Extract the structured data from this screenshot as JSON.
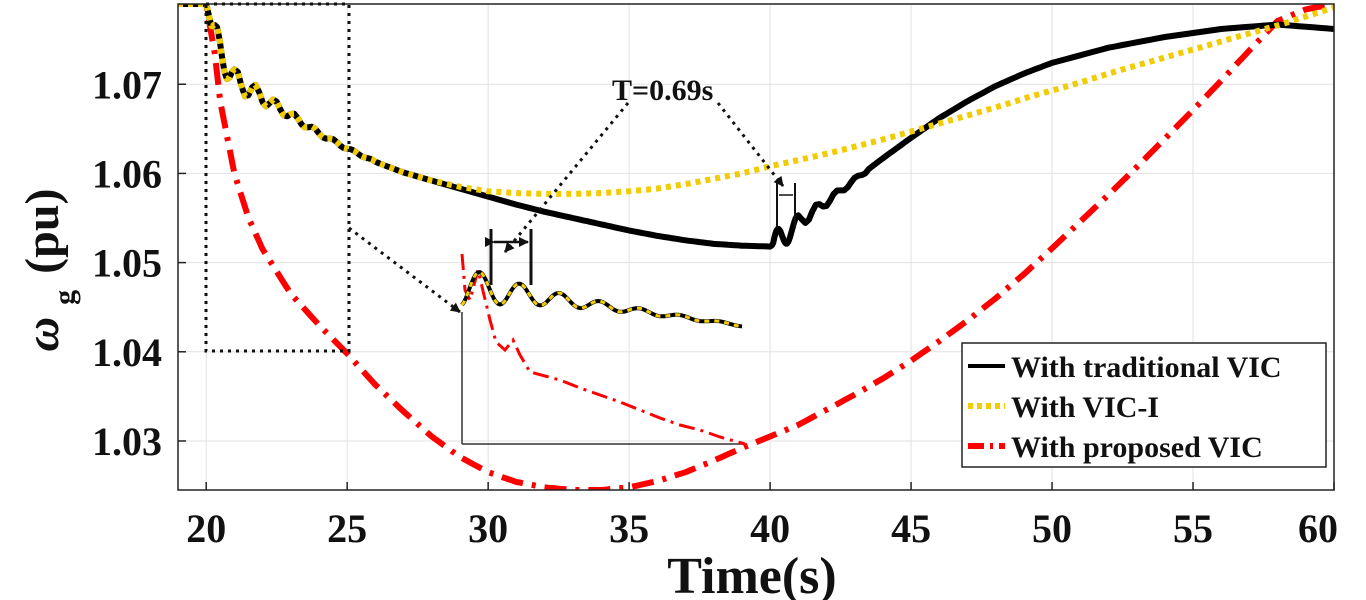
{
  "chart_data": {
    "type": "line",
    "xlabel": "Time(s)",
    "ylabel_symbol": "ω",
    "ylabel_subscript": "g",
    "ylabel_unit": "(pu)",
    "xlim": [
      19,
      60
    ],
    "ylim": [
      1.0245,
      1.079
    ],
    "xticks": [
      20,
      25,
      30,
      35,
      40,
      45,
      50,
      55,
      60
    ],
    "xtick_labels": [
      "20",
      "25",
      "30",
      "35",
      "40",
      "45",
      "50",
      "55",
      "60"
    ],
    "yticks": [
      1.03,
      1.04,
      1.05,
      1.06,
      1.07
    ],
    "ytick_labels": [
      "1.03",
      "1.04",
      "1.05",
      "1.06",
      "1.07"
    ],
    "grid": true,
    "legend_position": "bottom-right",
    "annotation": "T=0.69s",
    "zoom_box": {
      "x": [
        20,
        25
      ],
      "y": [
        1.04,
        1.079
      ]
    },
    "series": [
      {
        "name": "With traditional VIC",
        "color": "#000000",
        "style": "solid",
        "x": [
          19,
          20,
          20.3,
          21,
          22,
          23,
          24,
          25,
          26,
          27,
          28,
          29,
          30,
          31,
          32,
          33,
          34,
          35,
          36,
          37,
          38,
          39,
          40,
          40.3,
          40.6,
          41,
          42,
          43,
          44,
          45,
          46,
          47,
          48,
          49,
          50,
          52,
          54,
          56,
          58,
          60
        ],
        "y": [
          1.079,
          1.079,
          1.075,
          1.0705,
          1.0685,
          1.0665,
          1.0645,
          1.0628,
          1.0613,
          1.0601,
          1.0592,
          1.0583,
          1.0574,
          1.0565,
          1.0557,
          1.055,
          1.0543,
          1.0536,
          1.053,
          1.0525,
          1.0521,
          1.0519,
          1.0518,
          1.0525,
          1.0532,
          1.0545,
          1.0568,
          1.0593,
          1.0617,
          1.064,
          1.0662,
          1.0681,
          1.0698,
          1.0712,
          1.0724,
          1.0741,
          1.0753,
          1.0762,
          1.0767,
          1.0762
        ]
      },
      {
        "name": "With VIC-I",
        "color": "#f0cc00",
        "style": "dotted",
        "x": [
          19,
          20,
          20.3,
          21,
          22,
          23,
          24,
          25,
          26,
          27,
          28,
          29,
          30,
          31,
          32,
          33,
          34,
          35,
          36,
          37,
          38,
          39,
          40,
          41,
          42,
          43,
          44,
          45,
          46,
          47,
          48,
          49,
          50,
          51,
          52,
          53,
          54,
          55,
          56,
          57,
          58,
          59,
          60
        ],
        "y": [
          1.079,
          1.079,
          1.075,
          1.0705,
          1.0685,
          1.0665,
          1.0645,
          1.0628,
          1.0613,
          1.0601,
          1.0592,
          1.0585,
          1.058,
          1.0578,
          1.0577,
          1.0577,
          1.0578,
          1.058,
          1.0583,
          1.0588,
          1.0594,
          1.06,
          1.0608,
          1.0615,
          1.0622,
          1.063,
          1.0638,
          1.0647,
          1.0656,
          1.0665,
          1.0674,
          1.0684,
          1.0693,
          1.0702,
          1.0712,
          1.0721,
          1.073,
          1.0739,
          1.0748,
          1.0757,
          1.0766,
          1.0776,
          1.0786
        ]
      },
      {
        "name": "With proposed VIC",
        "color": "#ff0000",
        "style": "dash-dot",
        "x": [
          19,
          20,
          20.3,
          20.5,
          21,
          21.5,
          22,
          23,
          24,
          25,
          26,
          27,
          28,
          29,
          30,
          31,
          32,
          33,
          34,
          35,
          36,
          37,
          38,
          39,
          40,
          41,
          42,
          43,
          44,
          45,
          46,
          47,
          48,
          49,
          50,
          51,
          52,
          53,
          54,
          55,
          56,
          57,
          58,
          59,
          60
        ],
        "y": [
          1.079,
          1.079,
          1.0735,
          1.068,
          1.06,
          1.055,
          1.0515,
          1.0465,
          1.043,
          1.0398,
          1.0363,
          1.0333,
          1.0305,
          1.0282,
          1.0265,
          1.0254,
          1.0248,
          1.0245,
          1.0245,
          1.0248,
          1.0255,
          1.0265,
          1.0278,
          1.0292,
          1.0305,
          1.0318,
          1.0335,
          1.0352,
          1.037,
          1.039,
          1.0412,
          1.0435,
          1.046,
          1.0487,
          1.0516,
          1.0546,
          1.0576,
          1.0607,
          1.0639,
          1.0671,
          1.0704,
          1.0738,
          1.0771,
          1.0784,
          1.079
        ]
      }
    ]
  }
}
